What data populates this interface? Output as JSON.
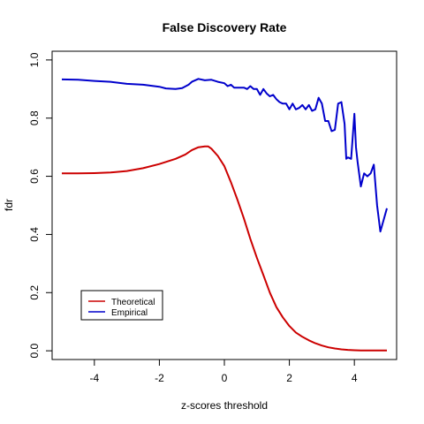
{
  "chart_data": {
    "type": "line",
    "title": "False Discovery Rate",
    "xlabel": "z-scores threshold",
    "ylabel": "fdr",
    "xlim": [
      -5.3,
      5.3
    ],
    "ylim": [
      -0.03,
      1.03
    ],
    "xticks": [
      -4,
      -2,
      0,
      2,
      4
    ],
    "xtick_labels": [
      "-4",
      "-2",
      "0",
      "2",
      "4"
    ],
    "yticks": [
      0.0,
      0.2,
      0.4,
      0.6,
      0.8,
      1.0
    ],
    "ytick_labels": [
      "0.0",
      "0.2",
      "0.4",
      "0.6",
      "0.8",
      "1.0"
    ],
    "grid": false,
    "legend_position": "bottom-left",
    "series": [
      {
        "name": "Theoretical",
        "color": "#cc0000",
        "x": [
          -5.0,
          -4.5,
          -4.0,
          -3.5,
          -3.0,
          -2.5,
          -2.0,
          -1.5,
          -1.2,
          -1.0,
          -0.8,
          -0.6,
          -0.5,
          -0.4,
          -0.2,
          0.0,
          0.2,
          0.4,
          0.6,
          0.8,
          1.0,
          1.2,
          1.4,
          1.6,
          1.8,
          2.0,
          2.2,
          2.4,
          2.6,
          2.8,
          3.0,
          3.2,
          3.4,
          3.6,
          3.8,
          4.0,
          4.2,
          4.5,
          5.0
        ],
        "y": [
          0.61,
          0.61,
          0.611,
          0.613,
          0.618,
          0.628,
          0.642,
          0.66,
          0.675,
          0.69,
          0.7,
          0.703,
          0.703,
          0.695,
          0.67,
          0.635,
          0.58,
          0.52,
          0.455,
          0.385,
          0.32,
          0.26,
          0.2,
          0.15,
          0.115,
          0.085,
          0.063,
          0.048,
          0.036,
          0.026,
          0.018,
          0.012,
          0.008,
          0.005,
          0.003,
          0.002,
          0.001,
          0.001,
          0.001
        ]
      },
      {
        "name": "Empirical",
        "color": "#0000cc",
        "x": [
          -5.0,
          -4.5,
          -4.0,
          -3.5,
          -3.0,
          -2.5,
          -2.0,
          -1.8,
          -1.5,
          -1.3,
          -1.1,
          -1.0,
          -0.8,
          -0.6,
          -0.4,
          -0.2,
          0.0,
          0.1,
          0.2,
          0.3,
          0.4,
          0.5,
          0.6,
          0.7,
          0.8,
          0.9,
          1.0,
          1.1,
          1.2,
          1.3,
          1.4,
          1.5,
          1.6,
          1.7,
          1.8,
          1.9,
          2.0,
          2.1,
          2.2,
          2.3,
          2.4,
          2.5,
          2.6,
          2.7,
          2.8,
          2.9,
          3.0,
          3.1,
          3.2,
          3.3,
          3.4,
          3.5,
          3.6,
          3.7,
          3.75,
          3.8,
          3.9,
          4.0,
          4.05,
          4.1,
          4.2,
          4.3,
          4.4,
          4.5,
          4.6,
          4.7,
          4.8,
          4.9,
          5.0
        ],
        "y": [
          0.933,
          0.932,
          0.928,
          0.925,
          0.918,
          0.915,
          0.908,
          0.902,
          0.9,
          0.903,
          0.915,
          0.925,
          0.935,
          0.93,
          0.932,
          0.925,
          0.92,
          0.91,
          0.915,
          0.905,
          0.905,
          0.905,
          0.905,
          0.9,
          0.91,
          0.9,
          0.9,
          0.88,
          0.9,
          0.885,
          0.875,
          0.88,
          0.865,
          0.855,
          0.85,
          0.85,
          0.83,
          0.85,
          0.83,
          0.835,
          0.845,
          0.83,
          0.845,
          0.825,
          0.83,
          0.87,
          0.85,
          0.79,
          0.79,
          0.755,
          0.76,
          0.85,
          0.855,
          0.78,
          0.66,
          0.665,
          0.66,
          0.815,
          0.7,
          0.65,
          0.565,
          0.61,
          0.6,
          0.61,
          0.64,
          0.5,
          0.41,
          0.45,
          0.49
        ]
      }
    ]
  }
}
